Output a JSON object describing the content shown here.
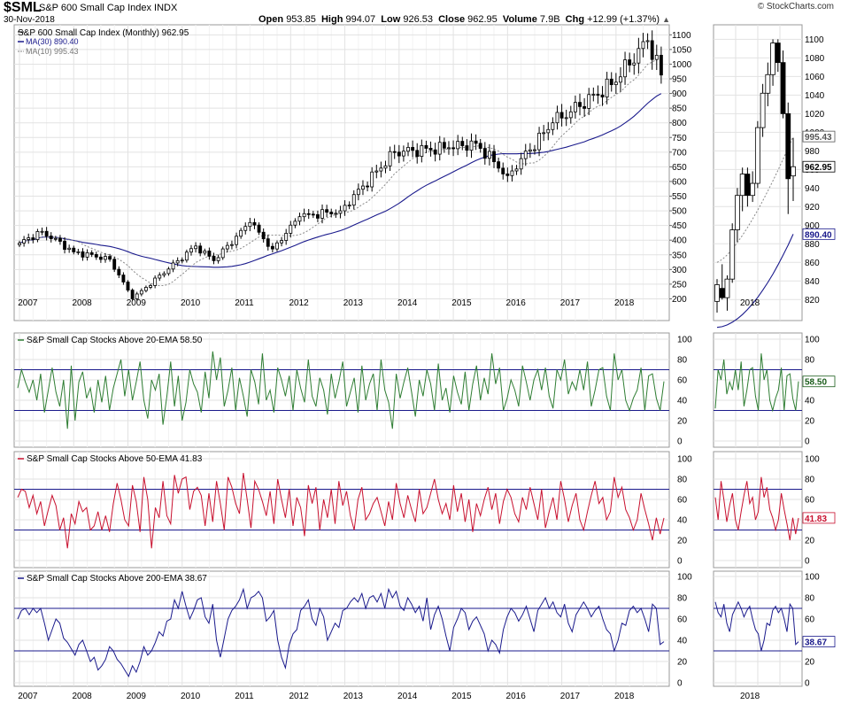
{
  "header": {
    "symbol": "$SML",
    "name": "S&P 600 Small Cap Index",
    "exchange": "INDX",
    "date": "30-Nov-2018",
    "brand": "© StockCharts.com",
    "open_label": "Open",
    "open": "953.85",
    "high_label": "High",
    "high": "994.07",
    "low_label": "Low",
    "low": "926.53",
    "close_label": "Close",
    "close": "962.95",
    "volume_label": "Volume",
    "volume": "7.9B",
    "chg_label": "Chg",
    "chg": "+12.99 (+1.37%)",
    "chg_arrow": "▲"
  },
  "colors": {
    "ma30": "#1a1a8c",
    "ma10": "#888888",
    "ema20": "#2e7d32",
    "ema50": "#c8102e",
    "ema200": "#1a1a8c",
    "grid": "#e2e2e2",
    "band": "#1a1a8c"
  },
  "chart_data": [
    {
      "type": "candlestick",
      "title": "S&P 600 Small Cap Index (Monthly) 962.95",
      "legend": [
        {
          "label": "MA(30) 890.40",
          "style": "solid"
        },
        {
          "label": "MA(10) 995.43",
          "style": "dotted"
        }
      ],
      "x_tick_labels": [
        "2007",
        "2008",
        "2009",
        "2010",
        "2011",
        "2012",
        "2013",
        "2014",
        "2015",
        "2016",
        "2017",
        "2018"
      ],
      "y_tick_labels": [
        "1100",
        "1050",
        "1000",
        "950",
        "900",
        "850",
        "800",
        "750",
        "700",
        "650",
        "600",
        "550",
        "500",
        "450",
        "400",
        "350",
        "300",
        "250",
        "200"
      ],
      "ylim": [
        150,
        1110
      ],
      "close_monthly_anchors": {
        "2007-01": 390,
        "2007-06": 430,
        "2008-01": 360,
        "2008-09": 335,
        "2009-02": 200,
        "2009-12": 330,
        "2010-04": 380,
        "2010-08": 330,
        "2011-04": 460,
        "2011-09": 370,
        "2012-03": 480,
        "2012-12": 500,
        "2013-12": 700,
        "2014-12": 715,
        "2015-06": 730,
        "2016-01": 620,
        "2016-11": 800,
        "2017-12": 930,
        "2018-08": 1080,
        "2018-11": 962.95
      },
      "ma30_last": 890.4,
      "ma10_last": 995.43
    },
    {
      "type": "candlestick-zoom",
      "x_tick_labels": [
        "2018"
      ],
      "y_tick_labels": [
        "1100",
        "1080",
        "1060",
        "1040",
        "1020",
        "1000",
        "980",
        "960",
        "940",
        "920",
        "900",
        "880",
        "860",
        "840",
        "820"
      ],
      "ylim": [
        805,
        1108
      ],
      "last_close": 962.95,
      "ma10_label": "995.43",
      "ma30_label": "890.40",
      "close_label": "962.95",
      "candles": [
        {
          "o": 818,
          "h": 842,
          "l": 806,
          "c": 836
        },
        {
          "o": 832,
          "h": 858,
          "l": 820,
          "c": 822
        },
        {
          "o": 822,
          "h": 846,
          "l": 808,
          "c": 842
        },
        {
          "o": 842,
          "h": 902,
          "l": 838,
          "c": 895
        },
        {
          "o": 895,
          "h": 940,
          "l": 882,
          "c": 932
        },
        {
          "o": 932,
          "h": 962,
          "l": 915,
          "c": 955
        },
        {
          "o": 955,
          "h": 962,
          "l": 920,
          "c": 932
        },
        {
          "o": 932,
          "h": 958,
          "l": 925,
          "c": 945
        },
        {
          "o": 945,
          "h": 1012,
          "l": 940,
          "c": 1005
        },
        {
          "o": 1005,
          "h": 1052,
          "l": 995,
          "c": 1042
        },
        {
          "o": 1042,
          "h": 1075,
          "l": 1028,
          "c": 1062
        },
        {
          "o": 1062,
          "h": 1100,
          "l": 1050,
          "c": 1096
        },
        {
          "o": 1096,
          "h": 1100,
          "l": 1065,
          "c": 1075
        },
        {
          "o": 1075,
          "h": 1088,
          "l": 1015,
          "c": 1020
        },
        {
          "o": 1020,
          "h": 1032,
          "l": 912,
          "c": 950
        },
        {
          "o": 953,
          "h": 994,
          "l": 926,
          "c": 962.95
        }
      ]
    },
    {
      "type": "line",
      "title": "S&P Small Cap Stocks Above 20-EMA 58.50",
      "last_value": "58.50",
      "ylim": [
        0,
        100
      ],
      "y_tick_labels": [
        "100",
        "80",
        "60",
        "40",
        "20",
        "0"
      ],
      "bands": [
        30,
        70
      ],
      "values": [
        52,
        70,
        58,
        48,
        60,
        40,
        66,
        28,
        50,
        72,
        48,
        34,
        60,
        12,
        74,
        20,
        58,
        68,
        42,
        52,
        28,
        60,
        38,
        64,
        30,
        52,
        66,
        80,
        44,
        70,
        40,
        58,
        78,
        40,
        22,
        60,
        50,
        66,
        16,
        44,
        78,
        34,
        64,
        20,
        38,
        70,
        56,
        48,
        28,
        68,
        42,
        88,
        60,
        82,
        34,
        50,
        72,
        30,
        62,
        44,
        24,
        70,
        58,
        36,
        86,
        40,
        50,
        28,
        72,
        60,
        44,
        64,
        30,
        70,
        52,
        38,
        80,
        44,
        34,
        62,
        50,
        26,
        66,
        42,
        58,
        78,
        34,
        48,
        62,
        28,
        74,
        40,
        56,
        66,
        30,
        80,
        50,
        38,
        12,
        66,
        42,
        58,
        72,
        48,
        24,
        60,
        44,
        70,
        56,
        30,
        76,
        40,
        52,
        28,
        64,
        48,
        36,
        68,
        30,
        56,
        74,
        40,
        62,
        46,
        86,
        56,
        72,
        30,
        42,
        60,
        50,
        34,
        74,
        58,
        40,
        60,
        70,
        50,
        72,
        44,
        32,
        70,
        60,
        80,
        46,
        58,
        50,
        70,
        50,
        78,
        34,
        50,
        70,
        72,
        44,
        30,
        86,
        60,
        70,
        40,
        30,
        42,
        50,
        72,
        30,
        64,
        66,
        42,
        30,
        58.5
      ]
    },
    {
      "type": "line",
      "title": "S&P Small Cap Stocks Above 50-EMA 41.83",
      "last_value": "41.83",
      "ylim": [
        0,
        100
      ],
      "y_tick_labels": [
        "100",
        "80",
        "60",
        "40",
        "20",
        "0"
      ],
      "bands": [
        30,
        70
      ],
      "values": [
        62,
        70,
        68,
        52,
        64,
        46,
        58,
        34,
        50,
        64,
        54,
        30,
        42,
        12,
        46,
        36,
        58,
        48,
        52,
        30,
        34,
        48,
        30,
        44,
        28,
        56,
        76,
        60,
        40,
        34,
        74,
        58,
        28,
        82,
        60,
        12,
        52,
        42,
        78,
        44,
        36,
        84,
        66,
        80,
        82,
        50,
        68,
        72,
        64,
        34,
        66,
        38,
        78,
        56,
        30,
        82,
        72,
        56,
        46,
        86,
        60,
        32,
        78,
        70,
        58,
        44,
        68,
        36,
        80,
        60,
        42,
        70,
        34,
        62,
        52,
        24,
        74,
        56,
        72,
        30,
        60,
        42,
        70,
        36,
        78,
        54,
        68,
        44,
        30,
        60,
        72,
        40,
        46,
        56,
        62,
        48,
        34,
        58,
        40,
        76,
        56,
        42,
        64,
        50,
        38,
        70,
        46,
        52,
        66,
        80,
        60,
        46,
        56,
        40,
        74,
        48,
        66,
        38,
        60,
        28,
        56,
        44,
        60,
        72,
        50,
        66,
        36,
        58,
        70,
        62,
        46,
        38,
        62,
        50,
        72,
        56,
        40,
        70,
        32,
        48,
        62,
        40,
        78,
        60,
        38,
        54,
        66,
        40,
        30,
        48,
        64,
        78,
        56,
        62,
        40,
        48,
        82,
        62,
        72,
        50,
        42,
        30,
        40,
        66,
        50,
        36,
        20,
        42,
        26,
        41.83
      ]
    },
    {
      "type": "line",
      "title": "S&P Small Cap Stocks Above 200-EMA 38.67",
      "last_value": "38.67",
      "ylim": [
        0,
        100
      ],
      "y_tick_labels": [
        "100",
        "80",
        "60",
        "40",
        "20",
        "0"
      ],
      "bands": [
        30,
        70
      ],
      "values": [
        60,
        68,
        70,
        64,
        70,
        66,
        70,
        56,
        40,
        50,
        60,
        56,
        42,
        38,
        32,
        26,
        36,
        40,
        30,
        20,
        24,
        12,
        16,
        22,
        34,
        30,
        22,
        18,
        12,
        6,
        16,
        10,
        20,
        34,
        26,
        30,
        38,
        48,
        44,
        58,
        60,
        78,
        70,
        86,
        72,
        60,
        68,
        78,
        80,
        62,
        56,
        74,
        40,
        24,
        42,
        60,
        68,
        72,
        78,
        88,
        70,
        80,
        82,
        86,
        80,
        58,
        62,
        68,
        40,
        24,
        14,
        36,
        46,
        50,
        68,
        72,
        78,
        60,
        54,
        70,
        62,
        40,
        48,
        56,
        52,
        68,
        70,
        76,
        80,
        76,
        84,
        70,
        80,
        82,
        76,
        84,
        70,
        88,
        80,
        86,
        72,
        68,
        80,
        74,
        66,
        72,
        58,
        80,
        50,
        64,
        72,
        60,
        44,
        30,
        52,
        60,
        70,
        66,
        50,
        58,
        62,
        54,
        46,
        30,
        40,
        36,
        28,
        50,
        62,
        70,
        66,
        58,
        64,
        72,
        60,
        48,
        68,
        74,
        80,
        70,
        76,
        66,
        62,
        74,
        56,
        48,
        64,
        70,
        76,
        70,
        62,
        68,
        72,
        60,
        50,
        46,
        30,
        40,
        56,
        54,
        68,
        72,
        66,
        70,
        60,
        48,
        74,
        70,
        36,
        38.67
      ]
    }
  ]
}
